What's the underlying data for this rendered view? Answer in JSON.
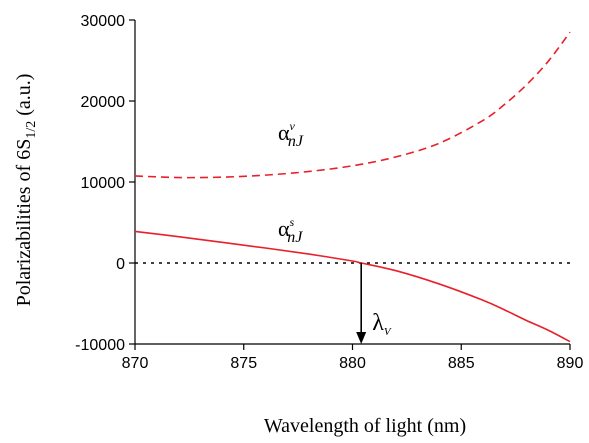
{
  "chart_data": {
    "type": "line",
    "xlabel": "Wavelength of light (nm)",
    "ylabel": "Polarizabilities of 6S",
    "ylabel_subscript": "1/2",
    "ylabel_suffix": "(a.u.)",
    "xlim": [
      870,
      890
    ],
    "ylim": [
      -10000,
      30000
    ],
    "x_ticks": [
      870,
      875,
      880,
      885,
      890
    ],
    "y_ticks": [
      -10000,
      0,
      10000,
      20000,
      30000
    ],
    "grid": false,
    "series": [
      {
        "name": "α^v_nJ",
        "label_symbol": "α",
        "label_sup": "v",
        "label_sub": "nJ",
        "style": "dashed",
        "color": "#e8202a",
        "x": [
          870,
          872,
          874,
          876,
          878,
          880,
          882,
          884,
          886,
          887,
          888,
          889,
          890
        ],
        "y": [
          10750,
          10550,
          10600,
          10850,
          11300,
          12000,
          13100,
          14800,
          17600,
          19600,
          22000,
          24900,
          28500
        ]
      },
      {
        "name": "α^s_nJ",
        "label_symbol": "α",
        "label_sup": "s",
        "label_sub": "nJ",
        "style": "solid",
        "color": "#e8202a",
        "x": [
          870,
          872,
          874,
          876,
          878,
          880,
          880.4,
          882,
          884,
          886,
          887,
          888,
          889,
          890
        ],
        "y": [
          3900,
          3250,
          2550,
          1850,
          1100,
          250,
          0,
          -950,
          -2600,
          -4600,
          -5800,
          -7100,
          -8300,
          -9700
        ]
      }
    ],
    "zero_line": {
      "y": 0,
      "style": "dotted",
      "color": "#000000"
    },
    "annotation": {
      "x": 880.4,
      "y_from": 0,
      "y_to": -10000,
      "symbol": "λ",
      "subscript": "V"
    }
  }
}
